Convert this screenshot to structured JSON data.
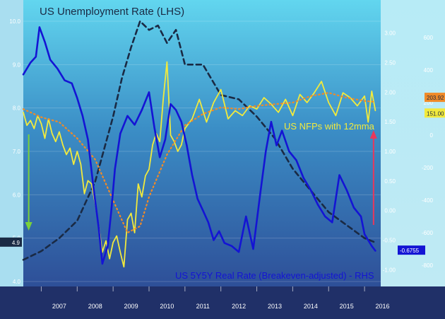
{
  "chart_data": {
    "type": "line",
    "title": "US Unemployment Rate (LHS)",
    "colors": {
      "unemployment": "#1a2a44",
      "nfp": "#f2ea3c",
      "nfp_avg": "#f08a28",
      "real_rate": "#1414d4",
      "arrow_green": "#7bd13a",
      "arrow_red": "#e8385c"
    },
    "x_ticks": [
      "2007",
      "2008",
      "2009",
      "2010",
      "2011",
      "2012",
      "2013",
      "2014",
      "2015",
      "2016"
    ],
    "left_axis": {
      "ticks": [
        "10.0",
        "9.0",
        "8.0",
        "7.0",
        "6.0",
        "5.0",
        "4.0"
      ],
      "ylim": [
        4.0,
        10.0
      ],
      "last_value": "4.9"
    },
    "rhs_rate_axis": {
      "ticks": [
        "3.00",
        "2.50",
        "2.00",
        "1.50",
        "1.00",
        "0.50",
        "0.00",
        "-0.50",
        "-1.00"
      ],
      "ylim": [
        -1.2,
        3.2
      ],
      "last_value": "-0.6755"
    },
    "rhs_nfp_axis": {
      "ticks": [
        "600",
        "400",
        "200",
        "0",
        "-200",
        "-400",
        "-600",
        "-800"
      ],
      "ylim": [
        -900,
        700
      ],
      "last_values": [
        "203.92",
        "151.00"
      ]
    },
    "annotations": {
      "nfp": "US NFPs with 12mma",
      "real_rate": "US 5Y5Y Real Rate (Breakeven-adjusted) - RHS"
    },
    "series": [
      {
        "name": "US Unemployment Rate (LHS)",
        "axis": "left",
        "x": [
          2006.5,
          2007.0,
          2007.5,
          2008.0,
          2008.5,
          2009.0,
          2009.25,
          2009.5,
          2009.75,
          2010.0,
          2010.25,
          2010.5,
          2010.75,
          2011.0,
          2011.5,
          2012.0,
          2012.5,
          2013.0,
          2013.5,
          2014.0,
          2014.5,
          2015.0,
          2015.5,
          2016.0,
          2016.3
        ],
        "values": [
          4.5,
          4.7,
          5.0,
          5.4,
          6.3,
          7.8,
          8.7,
          9.4,
          10.0,
          9.8,
          9.9,
          9.5,
          9.8,
          9.0,
          9.0,
          8.3,
          8.2,
          7.8,
          7.3,
          6.6,
          6.1,
          5.6,
          5.3,
          5.0,
          4.9
        ]
      },
      {
        "name": "US NFPs",
        "axis": "rhs_nfp",
        "x": [
          2006.5,
          2006.6,
          2006.7,
          2006.8,
          2006.9,
          2007.0,
          2007.1,
          2007.2,
          2007.3,
          2007.4,
          2007.5,
          2007.6,
          2007.7,
          2007.8,
          2007.9,
          2008.0,
          2008.1,
          2008.2,
          2008.3,
          2008.4,
          2008.5,
          2008.6,
          2008.7,
          2008.8,
          2008.9,
          2009.0,
          2009.1,
          2009.2,
          2009.3,
          2009.4,
          2009.5,
          2009.6,
          2009.7,
          2009.8,
          2009.9,
          2010.0,
          2010.1,
          2010.2,
          2010.3,
          2010.4,
          2010.5,
          2010.6,
          2010.7,
          2010.8,
          2010.9,
          2011.0,
          2011.2,
          2011.4,
          2011.6,
          2011.8,
          2012.0,
          2012.2,
          2012.4,
          2012.6,
          2012.8,
          2013.0,
          2013.2,
          2013.4,
          2013.6,
          2013.8,
          2014.0,
          2014.2,
          2014.4,
          2014.6,
          2014.8,
          2015.0,
          2015.2,
          2015.4,
          2015.6,
          2015.8,
          2016.0,
          2016.1,
          2016.2,
          2016.3
        ],
        "values": [
          140,
          60,
          90,
          40,
          120,
          70,
          -20,
          100,
          10,
          -40,
          20,
          -60,
          -120,
          -80,
          -180,
          -100,
          -180,
          -360,
          -280,
          -300,
          -420,
          -560,
          -720,
          -650,
          -760,
          -660,
          -620,
          -720,
          -810,
          -520,
          -480,
          -600,
          -300,
          -380,
          -250,
          -210,
          -60,
          10,
          -40,
          230,
          450,
          0,
          -40,
          -100,
          -60,
          40,
          100,
          220,
          80,
          200,
          280,
          100,
          150,
          120,
          180,
          160,
          230,
          190,
          140,
          220,
          120,
          250,
          200,
          260,
          330,
          200,
          120,
          260,
          230,
          180,
          240,
          80,
          270,
          151
        ]
      },
      {
        "name": "US NFPs 12mma",
        "axis": "rhs_nfp",
        "x": [
          2006.5,
          2007.0,
          2007.5,
          2008.0,
          2008.5,
          2009.0,
          2009.4,
          2009.75,
          2010.0,
          2010.5,
          2011.0,
          2011.5,
          2012.0,
          2012.5,
          2013.0,
          2013.5,
          2014.0,
          2014.5,
          2015.0,
          2015.5,
          2016.0,
          2016.3
        ],
        "values": [
          160,
          110,
          80,
          -20,
          -150,
          -400,
          -600,
          -560,
          -380,
          -120,
          60,
          130,
          170,
          160,
          180,
          190,
          200,
          240,
          260,
          230,
          210,
          204
        ]
      },
      {
        "name": "US 5Y5Y Real Rate (Breakeven-adjusted) - RHS",
        "axis": "rhs_rate",
        "x": [
          2006.5,
          2006.7,
          2006.85,
          2006.95,
          2007.1,
          2007.25,
          2007.45,
          2007.65,
          2007.85,
          2008.0,
          2008.15,
          2008.3,
          2008.45,
          2008.6,
          2008.7,
          2008.85,
          2008.95,
          2009.05,
          2009.2,
          2009.4,
          2009.6,
          2009.8,
          2010.0,
          2010.15,
          2010.3,
          2010.45,
          2010.6,
          2010.75,
          2010.9,
          2011.05,
          2011.2,
          2011.35,
          2011.5,
          2011.65,
          2011.8,
          2011.95,
          2012.1,
          2012.3,
          2012.5,
          2012.7,
          2012.9,
          2013.1,
          2013.25,
          2013.4,
          2013.55,
          2013.7,
          2013.9,
          2014.1,
          2014.3,
          2014.5,
          2014.7,
          2014.9,
          2015.1,
          2015.3,
          2015.5,
          2015.7,
          2015.9,
          2016.0,
          2016.1,
          2016.2,
          2016.3
        ],
        "values": [
          2.3,
          2.5,
          2.6,
          3.1,
          2.85,
          2.55,
          2.4,
          2.2,
          2.15,
          1.9,
          1.6,
          1.2,
          0.4,
          -0.3,
          -0.9,
          -0.6,
          0.0,
          0.7,
          1.3,
          1.6,
          1.45,
          1.7,
          2.0,
          1.4,
          0.9,
          1.2,
          1.8,
          1.7,
          1.5,
          1.1,
          0.6,
          0.2,
          0.0,
          -0.2,
          -0.5,
          -0.35,
          -0.55,
          -0.6,
          -0.7,
          -0.1,
          -0.65,
          0.3,
          1.0,
          1.5,
          1.1,
          1.35,
          1.0,
          0.85,
          0.55,
          0.35,
          0.1,
          -0.1,
          -0.2,
          0.6,
          0.35,
          0.05,
          -0.1,
          -0.4,
          -0.5,
          -0.6,
          -0.68
        ]
      }
    ]
  }
}
